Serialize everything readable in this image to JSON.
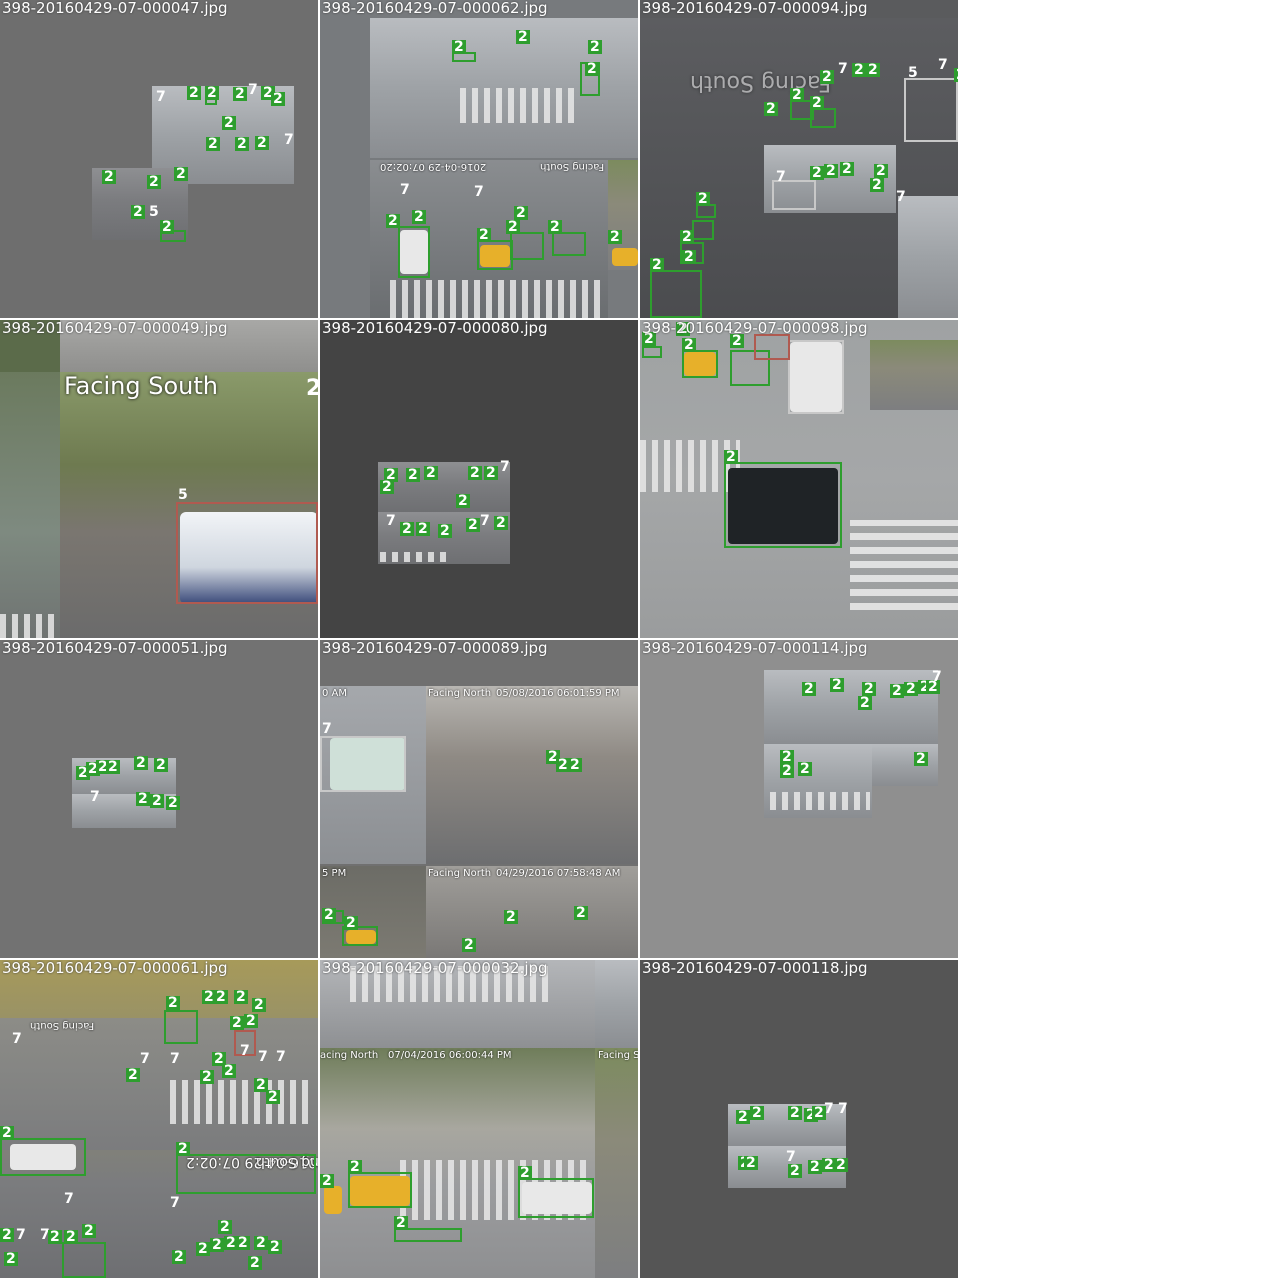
{
  "colors": {
    "box_green": "#2e9e2e",
    "box_red": "#b05a50",
    "tile_bg": "#6d6d6d",
    "tile_bg_dark": "#444444"
  },
  "tiles": [
    {
      "title": "398-20160429-07-000047.jpg"
    },
    {
      "title": "398-20160429-07-000062.jpg",
      "overlays": [
        "2016-04-29 07:02:20",
        "Facing South"
      ]
    },
    {
      "title": "398-20160429-07-000094.jpg",
      "overlays": [
        "Facing South"
      ]
    },
    {
      "title": "398-20160429-07-000049.jpg",
      "overlays": [
        "Facing South"
      ]
    },
    {
      "title": "398-20160429-07-000080.jpg"
    },
    {
      "title": "398-20160429-07-000098.jpg"
    },
    {
      "title": "398-20160429-07-000051.jpg"
    },
    {
      "title": "398-20160429-07-000089.jpg",
      "overlays": [
        "0 AM",
        "Facing North",
        "05/08/2016 06:01:59 PM",
        "5 PM",
        "Facing North",
        "04/29/2016 07:58:48 AM"
      ]
    },
    {
      "title": "398-20160429-07-000114.jpg"
    },
    {
      "title": "398-20160429-07-000061.jpg",
      "overlays": [
        "2016-04-29 07:02:2",
        "Facing South",
        "Facing South"
      ]
    },
    {
      "title": "398-20160429-07-000032.jpg",
      "overlays": [
        "acing North",
        "07/04/2016 06:00:44 PM",
        "Facing S"
      ]
    },
    {
      "title": "398-20160429-07-000118.jpg"
    }
  ],
  "labels": {
    "car": "2",
    "bus": "5",
    "truck": "7"
  }
}
